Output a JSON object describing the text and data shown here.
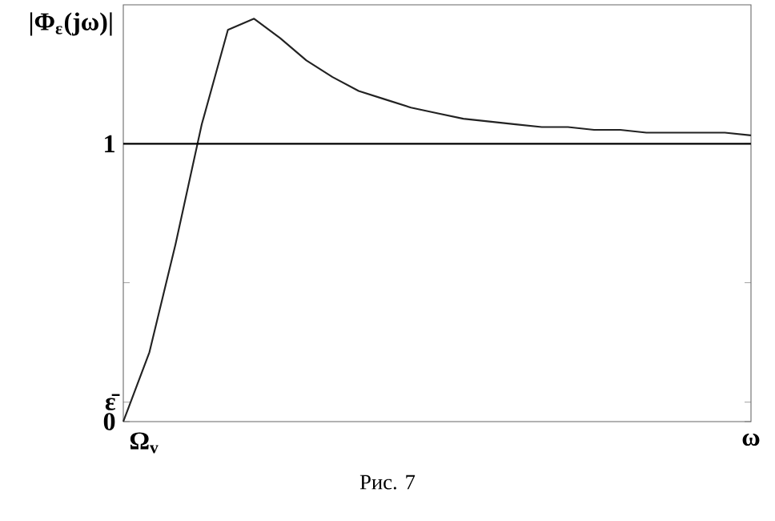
{
  "chart_data": {
    "type": "line",
    "ylabel": "|Φ$_{ε}$(jω)|",
    "xlabel": "ω",
    "categories": [
      null,
      null,
      null,
      null,
      null,
      null,
      null,
      null,
      null,
      null,
      null,
      null,
      null,
      null,
      null,
      null,
      null,
      null,
      null,
      null,
      null,
      null,
      null,
      null,
      null
    ],
    "series": [
      {
        "color": "#222222",
        "values": [
          0,
          0.25,
          0.64,
          1.07,
          1.41,
          1.45,
          1.38,
          1.3,
          1.24,
          1.19,
          1.16,
          1.13,
          1.11,
          1.09,
          1.08,
          1.07,
          1.06,
          1.06,
          1.05,
          1.05,
          1.04,
          1.04,
          1.04,
          1.04,
          1.03
        ]
      }
    ],
    "ylim": [
      0,
      1.5
    ],
    "yticks": [
      {
        "value": 0,
        "label": "0"
      },
      {
        "value": 0.07,
        "label": "ε̄"
      },
      {
        "value": 0.5,
        "label": null
      },
      {
        "value": 1,
        "label": "1"
      }
    ],
    "ref_lines": [
      {
        "axis": "y",
        "value": 1,
        "color": "#000000"
      }
    ],
    "grid": false,
    "marker": "none",
    "line_style": "solid",
    "annotations": [
      "Ω$_{v}$",
      "Рис. 7"
    ]
  }
}
